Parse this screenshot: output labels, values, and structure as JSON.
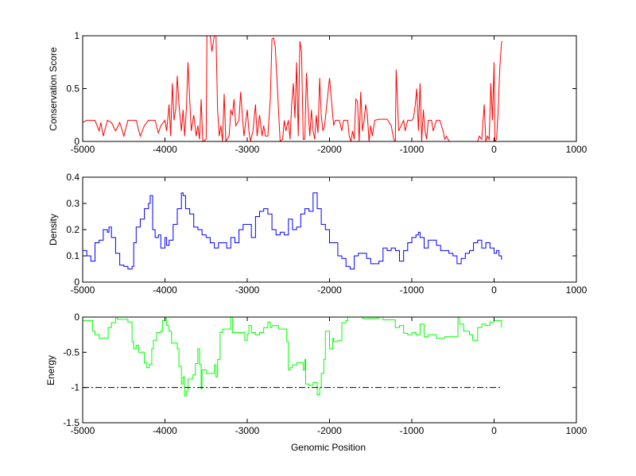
{
  "chart_data": [
    {
      "type": "line",
      "ylabel": "Conservation Score",
      "xlabel": "",
      "xlim": [
        -5000,
        1000
      ],
      "ylim": [
        0,
        1
      ],
      "xticks": [
        -5000,
        -4000,
        -3000,
        -2000,
        -1000,
        0,
        1000
      ],
      "yticks": [
        0,
        0.5,
        1
      ],
      "ytick_labels": [
        "0",
        "0.5",
        "1"
      ],
      "color": "#ff0000",
      "step": false,
      "x": [
        -5000,
        -4950,
        -4850,
        -4800,
        -4780,
        -4750,
        -4700,
        -4650,
        -4600,
        -4550,
        -4500,
        -4450,
        -4350,
        -4300,
        -4250,
        -4200,
        -4120,
        -4080,
        -4050,
        -4000,
        -3980,
        -3950,
        -3930,
        -3910,
        -3890,
        -3870,
        -3850,
        -3830,
        -3800,
        -3780,
        -3760,
        -3740,
        -3720,
        -3700,
        -3680,
        -3650,
        -3620,
        -3600,
        -3580,
        -3560,
        -3540,
        -3500,
        -3490,
        -3450,
        -3430,
        -3400,
        -3380,
        -3360,
        -3340,
        -3320,
        -3300,
        -3280,
        -3260,
        -3220,
        -3200,
        -3180,
        -3160,
        -3140,
        -3100,
        -3080,
        -3060,
        -3040,
        -3000,
        -2980,
        -2960,
        -2930,
        -2900,
        -2880,
        -2850,
        -2820,
        -2800,
        -2780,
        -2750,
        -2720,
        -2700,
        -2680,
        -2660,
        -2640,
        -2620,
        -2600,
        -2570,
        -2550,
        -2530,
        -2500,
        -2480,
        -2460,
        -2440,
        -2420,
        -2400,
        -2380,
        -2360,
        -2340,
        -2320,
        -2300,
        -2280,
        -2260,
        -2240,
        -2220,
        -2200,
        -2180,
        -2160,
        -2140,
        -2120,
        -2100,
        -2080,
        -2060,
        -2000,
        -1950,
        -1930,
        -1880,
        -1850,
        -1830,
        -1780,
        -1760,
        -1740,
        -1720,
        -1700,
        -1680,
        -1660,
        -1640,
        -1620,
        -1600,
        -1580,
        -1560,
        -1540,
        -1520,
        -1500,
        -1480,
        -1450,
        -1400,
        -1300,
        -1250,
        -1220,
        -1200,
        -1190,
        -1180,
        -1160,
        -1130,
        -1100,
        -1080,
        -1050,
        -1000,
        -980,
        -960,
        -940,
        -920,
        -900,
        -880,
        -860,
        -840,
        -820,
        -800,
        -760,
        -740,
        -700,
        -660,
        -620,
        -600,
        -580,
        -560,
        -540,
        -200,
        -180,
        -150,
        -120,
        -100,
        -80,
        -60,
        -40,
        -20,
        0,
        10,
        30,
        50,
        70,
        90,
        100
      ],
      "y": [
        0.18,
        0.2,
        0.2,
        0.1,
        0.18,
        0.05,
        0.2,
        0.18,
        0.1,
        0.18,
        0.05,
        0.2,
        0.2,
        0.05,
        0.15,
        0.2,
        0.2,
        0.08,
        0.15,
        0.2,
        0.1,
        0.35,
        0.05,
        0.55,
        0.2,
        0.3,
        0.62,
        0.35,
        0.1,
        0.3,
        0.05,
        0.3,
        0.75,
        0.4,
        0.1,
        0.25,
        0.05,
        0.15,
        0.02,
        0.4,
        0.0,
        0.02,
        1,
        1,
        0.85,
        1,
        1,
        0.3,
        0.05,
        0.15,
        0.0,
        0.45,
        0.0,
        0.05,
        0.3,
        0.25,
        0.4,
        0.15,
        0.2,
        0.47,
        0.25,
        0.05,
        0.3,
        0.1,
        0.0,
        0.1,
        0.35,
        0.05,
        0.25,
        0.05,
        0.15,
        0.05,
        0.05,
        0.4,
        0.97,
        0.98,
        0.9,
        0.6,
        0.3,
        0.0,
        0.02,
        0.2,
        0.1,
        0.2,
        0.02,
        0.35,
        0.55,
        0.22,
        0.75,
        0.05,
        0.95,
        0.85,
        0.02,
        0.02,
        0.65,
        0.3,
        0.05,
        0.3,
        0.1,
        0.02,
        0.25,
        0.08,
        0.6,
        0.25,
        0.1,
        0.15,
        0.6,
        0.15,
        0.2,
        0.2,
        0.1,
        0.2,
        0.2,
        0.05,
        0.0,
        0.1,
        0.02,
        0.4,
        0.38,
        0.0,
        0.47,
        0.1,
        0.2,
        0.35,
        0.25,
        0.0,
        0.15,
        0.05,
        0.2,
        0.21,
        0.21,
        0.15,
        0.02,
        0.0,
        0.68,
        0.5,
        0.1,
        0.15,
        0.2,
        0.1,
        0.2,
        0.2,
        0.22,
        0.33,
        0.5,
        0.1,
        0.55,
        0.0,
        0.3,
        0.1,
        0.02,
        0.2,
        0.2,
        0.1,
        0.2,
        0.2,
        0.1,
        0.02,
        0.05,
        0.02,
        0.0,
        0.0,
        0.05,
        0.02,
        0.35,
        0.0,
        0.05,
        0.02,
        0.55,
        0.2,
        0.75,
        0.0,
        0.02,
        0.3,
        0.7,
        0.93,
        0.95
      ]
    },
    {
      "type": "line",
      "ylabel": "Density",
      "xlabel": "",
      "xlim": [
        -5000,
        1000
      ],
      "ylim": [
        0,
        0.4
      ],
      "xticks": [
        -5000,
        -4000,
        -3000,
        -2000,
        -1000,
        0,
        1000
      ],
      "yticks": [
        0,
        0.1,
        0.2,
        0.3,
        0.4
      ],
      "ytick_labels": [
        "0",
        "0.1",
        "0.2",
        "0.3",
        "0.4"
      ],
      "color": "#0000ff",
      "step": true,
      "x": [
        -5000,
        -4950,
        -4900,
        -4850,
        -4800,
        -4750,
        -4700,
        -4680,
        -4650,
        -4600,
        -4550,
        -4500,
        -4450,
        -4400,
        -4380,
        -4350,
        -4300,
        -4250,
        -4200,
        -4180,
        -4150,
        -4120,
        -4080,
        -4050,
        -4000,
        -3980,
        -3950,
        -3900,
        -3850,
        -3800,
        -3780,
        -3750,
        -3700,
        -3650,
        -3600,
        -3550,
        -3500,
        -3450,
        -3400,
        -3350,
        -3300,
        -3250,
        -3200,
        -3150,
        -3100,
        -3050,
        -3000,
        -2950,
        -2900,
        -2850,
        -2800,
        -2750,
        -2700,
        -2650,
        -2600,
        -2550,
        -2500,
        -2450,
        -2400,
        -2350,
        -2300,
        -2250,
        -2200,
        -2150,
        -2100,
        -2050,
        -2000,
        -1950,
        -1900,
        -1850,
        -1800,
        -1750,
        -1700,
        -1650,
        -1600,
        -1550,
        -1500,
        -1450,
        -1400,
        -1350,
        -1300,
        -1250,
        -1200,
        -1150,
        -1100,
        -1050,
        -1000,
        -950,
        -920,
        -900,
        -850,
        -800,
        -750,
        -700,
        -650,
        -600,
        -550,
        -500,
        -450,
        -400,
        -350,
        -300,
        -250,
        -200,
        -150,
        -100,
        -50,
        0,
        30,
        60,
        90
      ],
      "y": [
        0.12,
        0.1,
        0.08,
        0.15,
        0.16,
        0.2,
        0.19,
        0.21,
        0.17,
        0.11,
        0.065,
        0.06,
        0.05,
        0.06,
        0.15,
        0.21,
        0.24,
        0.28,
        0.3,
        0.33,
        0.2,
        0.17,
        0.18,
        0.13,
        0.17,
        0.14,
        0.16,
        0.22,
        0.28,
        0.34,
        0.33,
        0.28,
        0.26,
        0.21,
        0.2,
        0.18,
        0.17,
        0.15,
        0.13,
        0.15,
        0.15,
        0.13,
        0.17,
        0.15,
        0.2,
        0.22,
        0.22,
        0.17,
        0.25,
        0.27,
        0.28,
        0.26,
        0.2,
        0.18,
        0.19,
        0.18,
        0.24,
        0.2,
        0.21,
        0.26,
        0.28,
        0.27,
        0.34,
        0.28,
        0.22,
        0.2,
        0.15,
        0.15,
        0.1,
        0.09,
        0.06,
        0.05,
        0.1,
        0.11,
        0.11,
        0.09,
        0.07,
        0.07,
        0.08,
        0.13,
        0.12,
        0.13,
        0.12,
        0.08,
        0.12,
        0.15,
        0.17,
        0.18,
        0.19,
        0.17,
        0.13,
        0.16,
        0.16,
        0.14,
        0.12,
        0.12,
        0.11,
        0.1,
        0.07,
        0.09,
        0.11,
        0.12,
        0.15,
        0.16,
        0.13,
        0.15,
        0.13,
        0.11,
        0.12,
        0.1,
        0.085
      ]
    },
    {
      "type": "line",
      "ylabel": "Energy",
      "xlabel": "Genomic Position",
      "xlim": [
        -5000,
        1000
      ],
      "ylim": [
        -1.5,
        0
      ],
      "xticks": [
        -5000,
        -4000,
        -3000,
        -2000,
        -1000,
        0,
        1000
      ],
      "yticks": [
        -1.5,
        -1,
        -0.5,
        0
      ],
      "ytick_labels": [
        "-1.5",
        "-1",
        "-0.5",
        "0"
      ],
      "color": "#00ff00",
      "step": true,
      "x": [
        -5000,
        -4880,
        -4850,
        -4800,
        -4690,
        -4650,
        -4600,
        -4580,
        -4450,
        -4400,
        -4380,
        -4350,
        -4320,
        -4250,
        -4220,
        -4190,
        -4160,
        -4140,
        -4100,
        -4050,
        -4030,
        -4000,
        -3980,
        -3950,
        -3920,
        -3850,
        -3830,
        -3800,
        -3780,
        -3760,
        -3740,
        -3720,
        -3660,
        -3630,
        -3600,
        -3580,
        -3560,
        -3550,
        -3500,
        -3400,
        -3380,
        -3360,
        -3330,
        -3300,
        -3200,
        -3180,
        -3030,
        -3000,
        -2980,
        -2950,
        -2900,
        -2850,
        -2800,
        -2750,
        -2720,
        -2700,
        -2620,
        -2520,
        -2500,
        -2480,
        -2450,
        -2400,
        -2320,
        -2300,
        -2290,
        -2250,
        -2200,
        -2150,
        -2120,
        -2100,
        -2070,
        -2050,
        -2000,
        -1960,
        -1950,
        -1900,
        -1850,
        -1800,
        -1780,
        -1600,
        -1400,
        -1350,
        -1200,
        -1150,
        -1100,
        -1050,
        -1000,
        -950,
        -900,
        -850,
        -800,
        -700,
        -650,
        -600,
        -450,
        -440,
        -420,
        -370,
        -300,
        -260,
        -200,
        -150,
        -100,
        -50,
        0,
        80,
        90
      ],
      "y": [
        -0.05,
        -0.2,
        -0.25,
        -0.3,
        -0.15,
        -0.08,
        0,
        -0.03,
        -0.07,
        -0.35,
        -0.45,
        -0.4,
        -0.5,
        -0.65,
        -0.72,
        -0.67,
        -0.45,
        -0.33,
        -0.22,
        -0.2,
        -0.05,
        -0.02,
        -0.12,
        -0.2,
        -0.37,
        -0.45,
        -0.7,
        -0.95,
        -0.85,
        -1.12,
        -1.05,
        -0.88,
        -0.82,
        -0.66,
        -0.45,
        -0.67,
        -1.02,
        -0.75,
        -0.8,
        -0.68,
        -0.85,
        -0.6,
        -0.22,
        -0.17,
        0,
        -0.22,
        -0.33,
        -0.24,
        -0.12,
        -0.22,
        -0.25,
        -0.22,
        -0.15,
        -0.07,
        -0.15,
        -0.12,
        -0.17,
        -0.35,
        -0.75,
        -0.72,
        -0.68,
        -0.65,
        -0.75,
        -0.6,
        -0.95,
        -0.97,
        -0.93,
        -1.1,
        -1.0,
        -0.8,
        -0.6,
        -0.2,
        -0.45,
        -0.3,
        -0.35,
        -0.33,
        -0.08,
        -0.05,
        0,
        -0.02,
        0,
        -0.04,
        -0.15,
        -0.12,
        -0.23,
        -0.25,
        -0.22,
        -0.25,
        -0.1,
        -0.28,
        -0.25,
        -0.3,
        -0.3,
        -0.28,
        -0.28,
        0,
        -0.1,
        -0.2,
        -0.25,
        -0.33,
        -0.15,
        -0.1,
        -0.12,
        -0.07,
        -0.05,
        -0.05,
        -0.15
      ],
      "reference_line": {
        "y": -1,
        "x_range": [
          -5000,
          100
        ],
        "color": "#000000",
        "style": "dash-dot"
      }
    }
  ]
}
